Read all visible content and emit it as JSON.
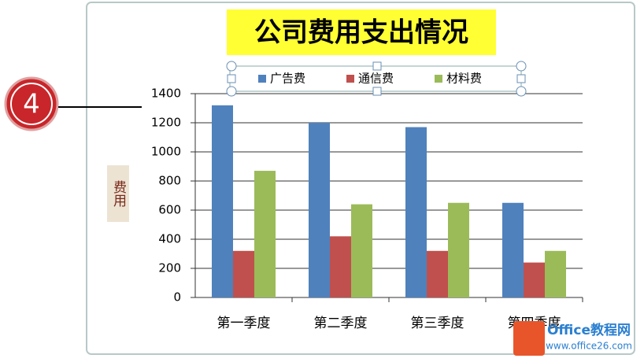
{
  "chart_data": {
    "type": "bar",
    "title": "公司费用支出情况",
    "y_label": "费用",
    "categories": [
      "第一季度",
      "第二季度",
      "第三季度",
      "第四季度"
    ],
    "series": [
      {
        "name": "广告费",
        "color": "#4f81bd",
        "values": [
          1320,
          1200,
          1170,
          650
        ]
      },
      {
        "name": "通信费",
        "color": "#c0504d",
        "values": [
          320,
          420,
          320,
          240
        ]
      },
      {
        "name": "材料费",
        "color": "#9bbb59",
        "values": [
          870,
          640,
          650,
          320
        ]
      }
    ],
    "ylim": [
      0,
      1400
    ],
    "yticks": [
      0,
      200,
      400,
      600,
      800,
      1000,
      1200,
      1400
    ],
    "grid": true
  },
  "annotation": {
    "marker": "4"
  },
  "watermark": {
    "name": "Office教程网",
    "url": "www.office26.com"
  }
}
